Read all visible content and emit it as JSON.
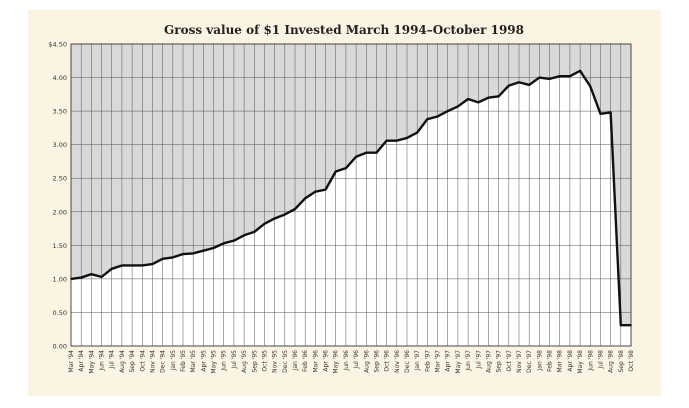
{
  "chart_data": {
    "type": "area",
    "title": "Gross value of $1 Invested March 1994–October 1998",
    "xlabel": "",
    "ylabel": "",
    "ylim": [
      0,
      4.5
    ],
    "yticks": [
      "0.00",
      "0.50",
      "1.00",
      "1.50",
      "2.00",
      "2.50",
      "3.00",
      "3.50",
      "4.00",
      "$4.50"
    ],
    "ytick_values": [
      0,
      0.5,
      1.0,
      1.5,
      2.0,
      2.5,
      3.0,
      3.5,
      4.0,
      4.5
    ],
    "grid": true,
    "colors": {
      "background_fill": "#d9d9d9",
      "area_fill": "#ffffff",
      "line": "#111111",
      "frame": "#fbf4e2"
    },
    "categories": [
      "Mar '94",
      "Apr '94",
      "May '94",
      "Jun '94",
      "Jul '94",
      "Aug '94",
      "Sep '94",
      "Oct '94",
      "Nov '94",
      "Dec '94",
      "Jan '95",
      "Feb '95",
      "Mar '95",
      "Apr '95",
      "May '95",
      "Jun '95",
      "Jul '95",
      "Aug '95",
      "Sep '95",
      "Oct '95",
      "Nov '95",
      "Dec '95",
      "Jan '96",
      "Feb '96",
      "Mar '96",
      "Apr '96",
      "May '96",
      "Jun '96",
      "Jul '96",
      "Aug '96",
      "Sep '96",
      "Oct '96",
      "Nov '96",
      "Dec '96",
      "Jan '97",
      "Feb '97",
      "Mar '97",
      "Apr '97",
      "May '97",
      "Jun '97",
      "Jul '97",
      "Aug '97",
      "Sep '97",
      "Oct '97",
      "Nov '97",
      "Dec '97",
      "Jan '98",
      "Feb '98",
      "Mar '98",
      "Apr '98",
      "May '98",
      "Jun '98",
      "Jul '98",
      "Aug '98",
      "Sep '98",
      "Oct '98"
    ],
    "values": [
      1.0,
      1.02,
      1.07,
      1.03,
      1.15,
      1.2,
      1.2,
      1.2,
      1.22,
      1.3,
      1.32,
      1.37,
      1.38,
      1.42,
      1.46,
      1.53,
      1.57,
      1.65,
      1.7,
      1.82,
      1.9,
      1.96,
      2.04,
      2.2,
      2.3,
      2.33,
      2.6,
      2.65,
      2.82,
      2.88,
      2.88,
      3.06,
      3.06,
      3.1,
      3.18,
      3.38,
      3.42,
      3.5,
      3.57,
      3.68,
      3.63,
      3.7,
      3.72,
      3.88,
      3.93,
      3.89,
      4.0,
      3.98,
      4.02,
      4.02,
      4.1,
      3.87,
      3.46,
      3.48,
      0.31,
      0.31
    ]
  }
}
